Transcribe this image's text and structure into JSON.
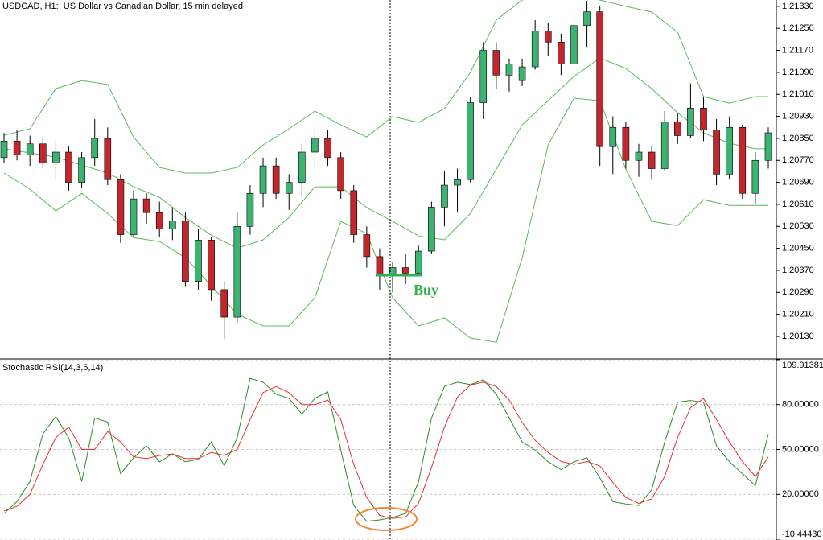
{
  "chart_data": [
    {
      "type": "candlestick",
      "title": "USDCAD, H1:  US Dollar vs Canadian Dollar, 15 min delayed",
      "open": [
        1.2078,
        1.2084,
        1.2079,
        1.2083,
        1.2076,
        1.208,
        1.2069,
        1.2078,
        1.2085,
        1.207,
        1.205,
        1.2063,
        1.2058,
        1.2052,
        1.2055,
        1.2033,
        1.2048,
        1.203,
        1.202,
        1.2053,
        1.2065,
        1.2075,
        1.2065,
        1.2069,
        1.208,
        1.2085,
        1.2078,
        1.2066,
        1.205,
        1.2042,
        1.2035,
        1.2038,
        1.2036,
        1.2044,
        1.206,
        1.2068,
        1.207,
        1.2098,
        1.2117,
        1.2108,
        1.2106,
        1.2111,
        1.2124,
        1.212,
        1.2112,
        1.2126,
        1.2131,
        1.2082,
        1.2089,
        1.2077,
        1.208,
        1.2074,
        1.2091,
        1.2086,
        1.2096,
        1.2088,
        1.2072,
        1.2089,
        1.2065,
        1.2077
      ],
      "high": [
        1.2087,
        1.2088,
        1.2086,
        1.2085,
        1.2084,
        1.2082,
        1.208,
        1.2092,
        1.2089,
        1.2072,
        1.2066,
        1.2065,
        1.2062,
        1.206,
        1.2058,
        1.2052,
        1.2049,
        1.2033,
        1.2058,
        1.2068,
        1.2078,
        1.2078,
        1.2072,
        1.2083,
        1.2089,
        1.2088,
        1.208,
        1.2068,
        1.2053,
        1.2045,
        1.204,
        1.2043,
        1.2046,
        1.2062,
        1.2073,
        1.2074,
        1.21,
        1.212,
        1.212,
        1.2114,
        1.2114,
        1.2128,
        1.2127,
        1.2123,
        1.213,
        1.2135,
        1.2133,
        1.2093,
        1.2091,
        1.2083,
        1.2082,
        1.2095,
        1.2094,
        1.2105,
        1.21,
        1.2092,
        1.2093,
        1.209,
        1.208,
        1.2089
      ],
      "low": [
        1.2076,
        1.2077,
        1.2075,
        1.2074,
        1.207,
        1.2066,
        1.2067,
        1.2075,
        1.2068,
        1.2047,
        1.2049,
        1.2054,
        1.2049,
        1.2048,
        1.2031,
        1.203,
        1.2026,
        1.2012,
        1.2018,
        1.205,
        1.206,
        1.2063,
        1.2059,
        1.2064,
        1.2074,
        1.2075,
        1.2063,
        1.2047,
        1.2038,
        1.203,
        1.2029,
        1.2032,
        1.2035,
        1.2043,
        1.2053,
        1.2058,
        1.2069,
        1.2092,
        1.2103,
        1.2102,
        1.2104,
        1.211,
        1.2115,
        1.2108,
        1.211,
        1.2118,
        1.2075,
        1.2072,
        1.2074,
        1.2071,
        1.207,
        1.2073,
        1.2083,
        1.2085,
        1.2084,
        1.2068,
        1.207,
        1.2063,
        1.2061,
        1.2074
      ],
      "close": [
        1.2084,
        1.2079,
        1.2083,
        1.2076,
        1.208,
        1.2069,
        1.2078,
        1.2085,
        1.207,
        1.205,
        1.2063,
        1.2058,
        1.2052,
        1.2055,
        1.2033,
        1.2048,
        1.203,
        1.202,
        1.2053,
        1.2065,
        1.2075,
        1.2065,
        1.2069,
        1.208,
        1.2085,
        1.2078,
        1.2066,
        1.205,
        1.2042,
        1.2035,
        1.2038,
        1.2036,
        1.2044,
        1.206,
        1.2068,
        1.207,
        1.2098,
        1.2117,
        1.2108,
        1.2112,
        1.2111,
        1.2124,
        1.212,
        1.2112,
        1.2126,
        1.2131,
        1.2082,
        1.2089,
        1.2077,
        1.208,
        1.2074,
        1.2091,
        1.2086,
        1.2096,
        1.2088,
        1.2072,
        1.2089,
        1.2065,
        1.2077,
        1.2087
      ],
      "up_color": "#3cb371",
      "down_color": "#c1272d",
      "series": [
        {
          "color": "#5cb85c",
          "x": [
            0,
            2,
            4,
            6,
            8,
            10,
            12,
            14,
            16,
            18,
            20,
            22,
            24,
            26,
            28,
            30,
            32,
            34,
            36,
            38,
            40,
            42,
            44,
            46,
            48,
            50,
            52,
            54,
            56,
            58,
            59
          ],
          "values": [
            1.20861,
            1.20885,
            1.21031,
            1.2106,
            1.21046,
            1.20855,
            1.20744,
            1.20724,
            1.20724,
            1.20744,
            1.20826,
            1.20885,
            1.20949,
            1.20899,
            1.20855,
            1.20929,
            1.20908,
            1.20958,
            1.2109,
            1.2128,
            1.21353,
            1.21397,
            1.21368,
            1.21353,
            1.2133,
            1.21309,
            1.21236,
            1.21002,
            1.20978,
            1.21002,
            1.21002
          ]
        },
        {
          "color": "#5cb85c",
          "x": [
            0,
            2,
            4,
            6,
            8,
            10,
            12,
            14,
            16,
            18,
            20,
            22,
            24,
            26,
            28,
            30,
            32,
            34,
            36,
            38,
            40,
            42,
            44,
            46,
            48,
            50,
            52,
            54,
            56,
            58,
            59
          ],
          "values": [
            1.20812,
            1.20797,
            1.20782,
            1.20753,
            1.20724,
            1.20674,
            1.20636,
            1.20562,
            1.20498,
            1.20451,
            1.20481,
            1.20562,
            1.20674,
            1.20674,
            1.20598,
            1.20548,
            1.20495,
            1.20481,
            1.20577,
            1.20738,
            1.20899,
            1.20987,
            1.21075,
            1.21142,
            1.21104,
            1.21031,
            1.20943,
            1.2087,
            1.20832,
            1.20812,
            1.20812
          ]
        },
        {
          "color": "#5cb85c",
          "x": [
            0,
            2,
            4,
            6,
            8,
            10,
            12,
            14,
            16,
            18,
            20,
            22,
            24,
            26,
            28,
            30,
            32,
            34,
            36,
            38,
            40,
            42,
            44,
            46,
            48,
            50,
            52,
            54,
            56,
            58,
            59
          ],
          "values": [
            1.20724,
            1.20665,
            1.20586,
            1.2065,
            1.20577,
            1.20489,
            1.20475,
            1.20416,
            1.20314,
            1.20211,
            1.20168,
            1.20168,
            1.2027,
            1.20548,
            1.20504,
            1.2027,
            1.20168,
            1.20197,
            1.20124,
            1.20109,
            1.20416,
            1.20826,
            1.20996,
            1.20987,
            1.20738,
            1.20548,
            1.20533,
            1.20627,
            1.20606,
            1.20606,
            1.20606
          ]
        }
      ],
      "ylim": [
        1.20051,
        1.21353
      ],
      "yticks": [
        {
          "value": 1.2133,
          "label": "1.21330"
        },
        {
          "value": 1.2125,
          "label": "1.21250"
        },
        {
          "value": 1.2117,
          "label": "1.21170"
        },
        {
          "value": 1.2109,
          "label": "1.21090"
        },
        {
          "value": 1.2101,
          "label": "1.21010"
        },
        {
          "value": 1.2093,
          "label": "1.20930"
        },
        {
          "value": 1.2085,
          "label": "1.20850"
        },
        {
          "value": 1.2077,
          "label": "1.20770"
        },
        {
          "value": 1.2069,
          "label": "1.20690"
        },
        {
          "value": 1.2061,
          "label": "1.20610"
        },
        {
          "value": 1.2053,
          "label": "1.20530"
        },
        {
          "value": 1.2045,
          "label": "1.20450"
        },
        {
          "value": 1.2037,
          "label": "1.20370"
        },
        {
          "value": 1.2029,
          "label": "1.20290"
        },
        {
          "value": 1.2021,
          "label": "1.20210"
        },
        {
          "value": 1.2013,
          "label": "1.20130"
        }
      ],
      "grid": false,
      "annotation": "Buy"
    },
    {
      "type": "line",
      "title": "Stochastic RSI(14,3,5,14)",
      "series": [
        {
          "color": "#2e8b2e",
          "values": [
            7.3,
            15.2,
            28.5,
            60.4,
            72.0,
            57.7,
            28.5,
            71.0,
            68.3,
            33.8,
            44.4,
            52.4,
            41.8,
            47.1,
            41.8,
            43.4,
            55.0,
            39.1,
            57.7,
            97.5,
            94.9,
            86.9,
            84.2,
            73.6,
            84.2,
            88.5,
            49.7,
            12.6,
            2.0,
            3.0,
            4.6,
            7.3,
            28.5,
            71.0,
            92.2,
            94.9,
            93.3,
            96.5,
            86.9,
            71.0,
            55.0,
            49.7,
            41.8,
            36.5,
            41.8,
            44.4,
            31.1,
            15.2,
            13.6,
            12.6,
            23.2,
            55.0,
            81.6,
            82.7,
            81.6,
            52.4,
            41.8,
            33.8,
            25.8,
            60.4
          ]
        },
        {
          "color": "#e8312f",
          "values": [
            9,
            12,
            20,
            40,
            58,
            65,
            50,
            50,
            62,
            55,
            45,
            44,
            46,
            47,
            44,
            44,
            48,
            46,
            50,
            70,
            88,
            92,
            88,
            80,
            80,
            83,
            70,
            40,
            18,
            6,
            4,
            5,
            14,
            38,
            65,
            85,
            93,
            95,
            92,
            83,
            68,
            56,
            48,
            42,
            40,
            42,
            39,
            28,
            18,
            14,
            17,
            32,
            58,
            78,
            84,
            70,
            55,
            42,
            32,
            45
          ]
        }
      ],
      "ylim": [
        -10.4443,
        109.91381
      ],
      "yticks": [
        109.91381,
        {
          "value": 80,
          "label": "80.00000"
        },
        {
          "value": 50,
          "label": "50.00000"
        },
        {
          "value": 20,
          "label": "20.00000"
        },
        {
          "value": -10.4443,
          "label": "-10.44430"
        }
      ],
      "grid": true
    }
  ]
}
